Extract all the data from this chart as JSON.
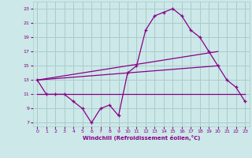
{
  "xlabel": "Windchill (Refroidissement éolien,°C)",
  "background_color": "#cce8e8",
  "grid_color": "#aacccc",
  "line_color": "#880088",
  "xlim": [
    -0.5,
    23.5
  ],
  "ylim": [
    6.5,
    24.0
  ],
  "xticks": [
    0,
    1,
    2,
    3,
    4,
    5,
    6,
    7,
    8,
    9,
    10,
    11,
    12,
    13,
    14,
    15,
    16,
    17,
    18,
    19,
    20,
    21,
    22,
    23
  ],
  "yticks": [
    7,
    9,
    11,
    13,
    15,
    17,
    19,
    21,
    23
  ],
  "curve1_x": [
    0,
    1,
    2,
    3,
    4,
    5,
    6,
    7,
    8,
    9,
    10,
    11,
    12,
    13,
    14,
    15,
    16,
    17,
    18,
    19,
    20,
    21,
    22,
    23
  ],
  "curve1_y": [
    13,
    11,
    11,
    11,
    10,
    9,
    7,
    9,
    9.5,
    8,
    14,
    15,
    20,
    22,
    22.5,
    23,
    22,
    20,
    19,
    17,
    15,
    13,
    12,
    10
  ],
  "curve2_x": [
    0,
    20
  ],
  "curve2_y": [
    13,
    17
  ],
  "curve3_x": [
    0,
    20
  ],
  "curve3_y": [
    13,
    15
  ],
  "curve4_x": [
    0,
    23
  ],
  "curve4_y": [
    11,
    11
  ]
}
